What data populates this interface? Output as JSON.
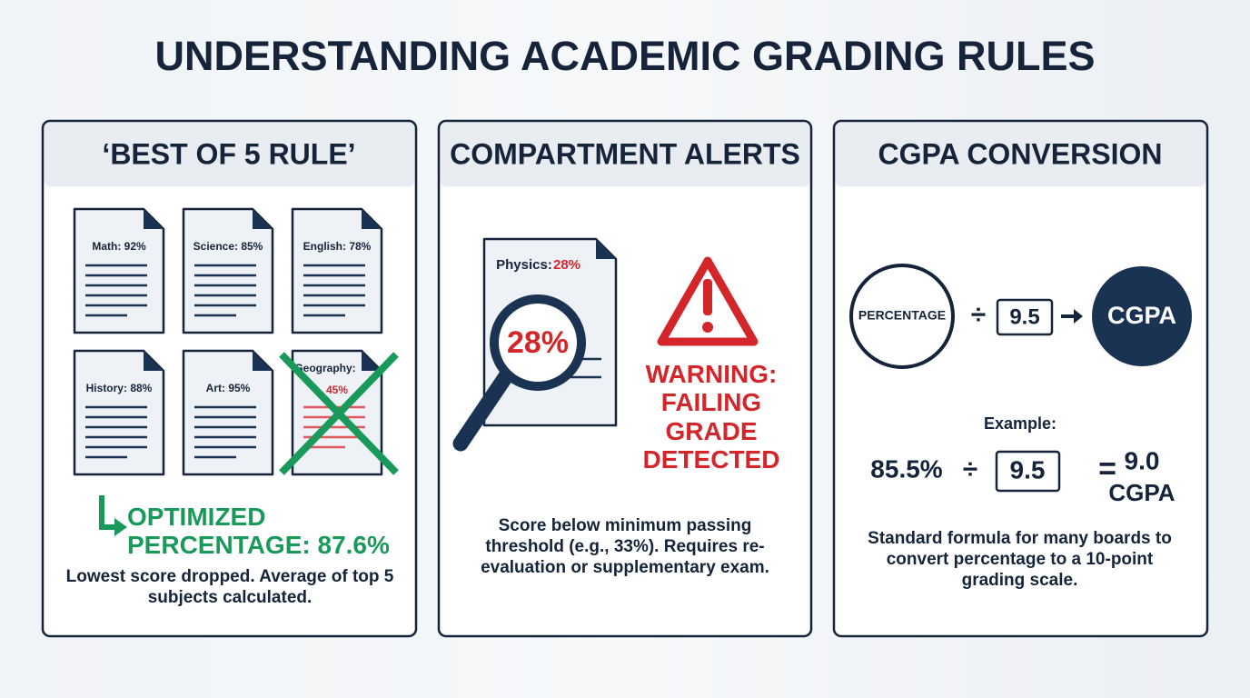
{
  "header": {
    "title": "UNDERSTANDING ACADEMIC GRADING RULES"
  },
  "panels": [
    {
      "title": "‘BEST OF 5 RULE’",
      "documents": [
        "Math: 92%",
        "Science: 85%",
        "English: 78%",
        "History: 88%",
        "Art: 95%"
      ],
      "dropped": {
        "label": "Geography:",
        "score": "45%"
      },
      "result": "OPTIMIZED PERCENTAGE: 87.6%",
      "note": "Lowest score dropped. Average of top 5 subjects calculated."
    },
    {
      "title": "COMPARTMENT ALERTS",
      "document": {
        "label": "Physics:",
        "score": "28%"
      },
      "magnified": "28%",
      "warning": "WARNING: FAILING GRADE DETECTED",
      "note": "Score below minimum passing threshold (e.g., 33%). Requires re-evaluation or supplementary exam."
    },
    {
      "title": "CGPA CONVERSION",
      "formula": {
        "input": "PERCENTAGE",
        "operator": "÷",
        "divisor": "9.5",
        "output": "CGPA"
      },
      "example": {
        "label": "Example:",
        "input": "85.5%",
        "operator": "÷",
        "divisor": "9.5",
        "equals": "=",
        "result": "9.0",
        "unit": "CGPA"
      },
      "note": "Standard formula for many boards to convert percentage to a 10-point grading scale."
    }
  ]
}
